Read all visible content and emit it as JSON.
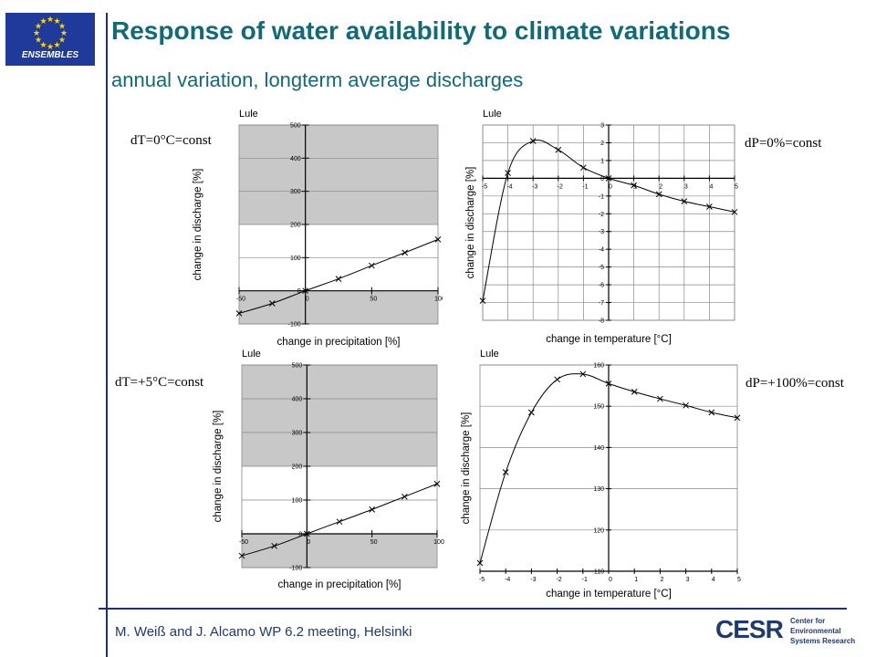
{
  "header": {
    "logo_text": "ENSEMBLES",
    "title": "Response of water availability to climate variations",
    "subtitle": "annual variation, longterm average discharges"
  },
  "footer": {
    "text": "M. Weiß and J. Alcamo  WP 6.2 meeting, Helsinki",
    "org_logo_text": "CESR",
    "org_logo_subtext": [
      "Center for",
      "Environmental",
      "Systems Research"
    ]
  },
  "conditions": {
    "top_left": "dT=0°C=const",
    "top_right": "dP=0%=const",
    "bottom_left": "dT=+5°C=const",
    "bottom_right": "dP=+100%=const"
  },
  "colors": {
    "title": "#116a76",
    "footer": "#1f3a6e",
    "rule": "#1f2f7a",
    "shade": "#c8c8c8",
    "eu_blue": "#1f3a9a",
    "star": "#ffd700"
  },
  "chart_data": [
    {
      "type": "line",
      "title": "Lule",
      "xlabel": "change in precipitation [%]",
      "ylabel": "change in discharge [%]",
      "xlim": [
        -50,
        100
      ],
      "ylim": [
        -100,
        500
      ],
      "xticks": [
        -50,
        0,
        50,
        100
      ],
      "yticks": [
        -100,
        0,
        100,
        200,
        300,
        400,
        500
      ],
      "shaded_ranges": [
        [
          -100,
          0
        ],
        [
          200,
          500
        ]
      ],
      "markers": "x",
      "x": [
        -50,
        -25,
        0,
        25,
        50,
        75,
        100
      ],
      "y": [
        -68,
        -38,
        0,
        36,
        76,
        115,
        155
      ]
    },
    {
      "type": "line",
      "title": "Lule",
      "xlabel": "change in temperature [°C]",
      "ylabel": "change in discharge [%]",
      "xlim": [
        -5,
        5
      ],
      "ylim": [
        -8,
        3
      ],
      "xticks": [
        -5,
        -4,
        -3,
        -2,
        -1,
        0,
        1,
        2,
        3,
        4,
        5
      ],
      "yticks": [
        3,
        2,
        1,
        0,
        -1,
        -2,
        -3,
        -4,
        -5,
        -6,
        -7,
        -8
      ],
      "markers": "x",
      "x": [
        -5,
        -4,
        -3,
        -2,
        -1,
        0,
        1,
        2,
        3,
        4,
        5
      ],
      "y": [
        -6.9,
        0.3,
        2.1,
        1.6,
        0.6,
        0,
        -0.4,
        -0.9,
        -1.3,
        -1.6,
        -1.9
      ]
    },
    {
      "type": "line",
      "title": "Lule",
      "xlabel": "change in precipitation [%]",
      "ylabel": "change in discharge [%]",
      "xlim": [
        -50,
        100
      ],
      "ylim": [
        -100,
        500
      ],
      "xticks": [
        -50,
        0,
        50,
        100
      ],
      "yticks": [
        -100,
        0,
        100,
        200,
        300,
        400,
        500
      ],
      "shaded_ranges": [
        [
          -100,
          0
        ],
        [
          200,
          500
        ]
      ],
      "markers": "x",
      "x": [
        -50,
        -25,
        0,
        25,
        50,
        75,
        100
      ],
      "y": [
        -65,
        -36,
        0,
        36,
        72,
        110,
        148
      ]
    },
    {
      "type": "line",
      "title": "Lule",
      "xlabel": "change in temperature [°C]",
      "ylabel": "change in discharge [%]",
      "xlim": [
        -5,
        5
      ],
      "ylim": [
        110,
        160
      ],
      "xticks": [
        -5,
        -4,
        -3,
        -2,
        -1,
        0,
        1,
        2,
        3,
        4,
        5
      ],
      "yticks": [
        110,
        120,
        130,
        140,
        150,
        160
      ],
      "markers": "x",
      "x": [
        -5,
        -4,
        -3,
        -2,
        -1,
        0,
        1,
        2,
        3,
        4,
        5
      ],
      "y": [
        112,
        134,
        148.5,
        156.5,
        157.8,
        155.5,
        153.5,
        151.8,
        150.2,
        148.5,
        147.2
      ]
    }
  ]
}
